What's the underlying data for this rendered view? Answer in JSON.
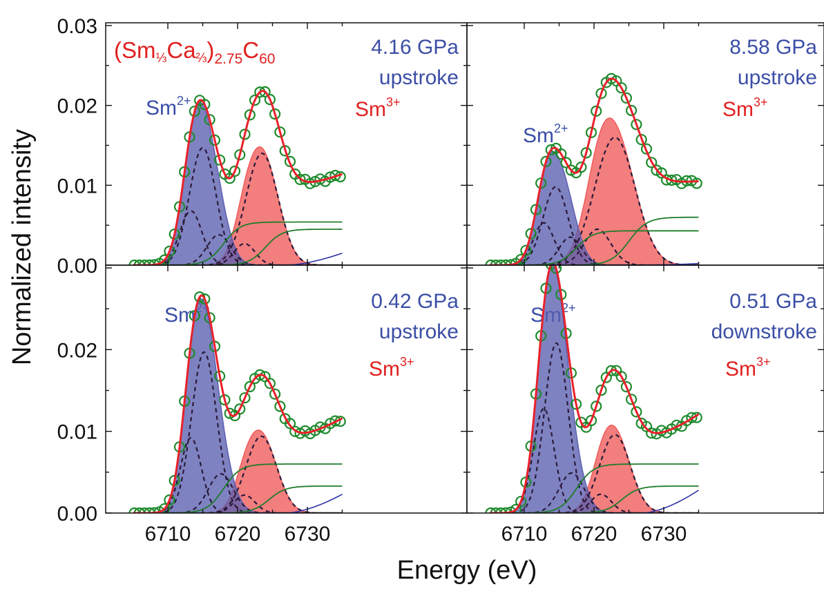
{
  "figure": {
    "ylabel": "Normalized intensity",
    "xlabel": "Energy (eV)",
    "compound": {
      "base": "(Sm",
      "frac1": "⅓",
      "mid": "Ca",
      "frac2": "⅔",
      "close": ")",
      "sub1": "2.75",
      "c": "C",
      "sub2": "60"
    },
    "sm2_label": "Sm",
    "sm2_sup": "2+",
    "sm3_label": "Sm",
    "sm3_sup": "3+"
  },
  "colors": {
    "sm2_fill": "#5b5fb0",
    "sm3_fill": "#f05a5a",
    "fit_line": "#e8212a",
    "data_marker": "#1d8a2c",
    "background_line": "#1e7d2a",
    "tail_line": "#2c33a6",
    "dashed": "#2a1a3a",
    "text_blue": "#3b4ea6",
    "text_red": "#e02020"
  },
  "chart_data": [
    {
      "type": "scatter",
      "panel": "top-left",
      "pressure": "4.16 GPa",
      "stroke": "upstroke",
      "x_range": [
        6705,
        6735
      ],
      "ylim": [
        0,
        0.03
      ],
      "yticks": [
        "0.00",
        "0.01",
        "0.02",
        "0.03"
      ],
      "series": [
        {
          "name": "Sm2+",
          "peaks": [
            {
              "center": 6713.3,
              "amp": 0.0068,
              "width": 1.6
            },
            {
              "center": 6715.0,
              "amp": 0.0147,
              "width": 1.9
            },
            {
              "center": 6717.3,
              "amp": 0.0038,
              "width": 1.7
            }
          ]
        },
        {
          "name": "Sm3+",
          "peaks": [
            {
              "center": 6721.0,
              "amp": 0.0027,
              "width": 1.5
            },
            {
              "center": 6723.5,
              "amp": 0.014,
              "width": 2.3
            }
          ]
        }
      ],
      "steps": [
        {
          "center": 6718.0,
          "height": 0.0054,
          "width": 1.2
        },
        {
          "center": 6724.0,
          "height": 0.0045,
          "width": 1.2
        }
      ],
      "tail": {
        "start": 6727.0,
        "end_value": 0.0015
      }
    },
    {
      "type": "scatter",
      "panel": "top-right",
      "pressure": "8.58 GPa",
      "stroke": "upstroke",
      "x_range": [
        6705,
        6735
      ],
      "ylim": [
        0,
        0.03
      ],
      "series": [
        {
          "name": "Sm2+",
          "peaks": [
            {
              "center": 6712.8,
              "amp": 0.0053,
              "width": 1.5
            },
            {
              "center": 6714.5,
              "amp": 0.0098,
              "width": 1.8
            },
            {
              "center": 6716.6,
              "amp": 0.0035,
              "width": 1.6
            }
          ]
        },
        {
          "name": "Sm3+",
          "peaks": [
            {
              "center": 6720.5,
              "amp": 0.0045,
              "width": 1.9
            },
            {
              "center": 6723.0,
              "amp": 0.016,
              "width": 2.9
            }
          ]
        }
      ],
      "steps": [
        {
          "center": 6717.5,
          "height": 0.0043,
          "width": 1.2
        },
        {
          "center": 6725.0,
          "height": 0.006,
          "width": 1.3
        }
      ],
      "tail": {
        "start": 6727.0,
        "end_value": 0.0002
      }
    },
    {
      "type": "scatter",
      "panel": "bottom-left",
      "pressure": "0.42 GPa",
      "stroke": "upstroke",
      "x_range": [
        6705,
        6735
      ],
      "x_ticks": [
        "6710",
        "6720",
        "6730"
      ],
      "ylim": [
        0,
        0.03
      ],
      "yticks": [
        "0.00",
        "0.01",
        "0.02"
      ],
      "series": [
        {
          "name": "Sm2+",
          "peaks": [
            {
              "center": 6713.3,
              "amp": 0.0092,
              "width": 1.5
            },
            {
              "center": 6715.2,
              "amp": 0.0197,
              "width": 1.8
            },
            {
              "center": 6717.6,
              "amp": 0.0048,
              "width": 1.8
            }
          ]
        },
        {
          "name": "Sm3+",
          "peaks": [
            {
              "center": 6721.0,
              "amp": 0.0022,
              "width": 1.5
            },
            {
              "center": 6723.4,
              "amp": 0.0094,
              "width": 2.2
            }
          ]
        }
      ],
      "steps": [
        {
          "center": 6718.0,
          "height": 0.006,
          "width": 1.2
        },
        {
          "center": 6724.5,
          "height": 0.0033,
          "width": 1.2
        }
      ],
      "tail": {
        "start": 6727.0,
        "end_value": 0.0023
      }
    },
    {
      "type": "scatter",
      "panel": "bottom-right",
      "pressure": "0.51 GPa",
      "stroke": "downstroke",
      "x_range": [
        6705,
        6735
      ],
      "x_ticks": [
        "6710",
        "6720",
        "6730"
      ],
      "ylim": [
        0,
        0.03
      ],
      "series": [
        {
          "name": "Sm2+",
          "peaks": [
            {
              "center": 6712.8,
              "amp": 0.0128,
              "width": 1.5
            },
            {
              "center": 6714.6,
              "amp": 0.0208,
              "width": 1.7
            },
            {
              "center": 6716.8,
              "amp": 0.0049,
              "width": 1.8
            }
          ]
        },
        {
          "name": "Sm3+",
          "peaks": [
            {
              "center": 6721.0,
              "amp": 0.0023,
              "width": 1.5
            },
            {
              "center": 6723.0,
              "amp": 0.0096,
              "width": 2.2
            }
          ]
        }
      ],
      "steps": [
        {
          "center": 6717.5,
          "height": 0.006,
          "width": 1.2
        },
        {
          "center": 6724.0,
          "height": 0.0033,
          "width": 1.2
        }
      ],
      "tail": {
        "start": 6727.0,
        "end_value": 0.0028
      }
    }
  ]
}
